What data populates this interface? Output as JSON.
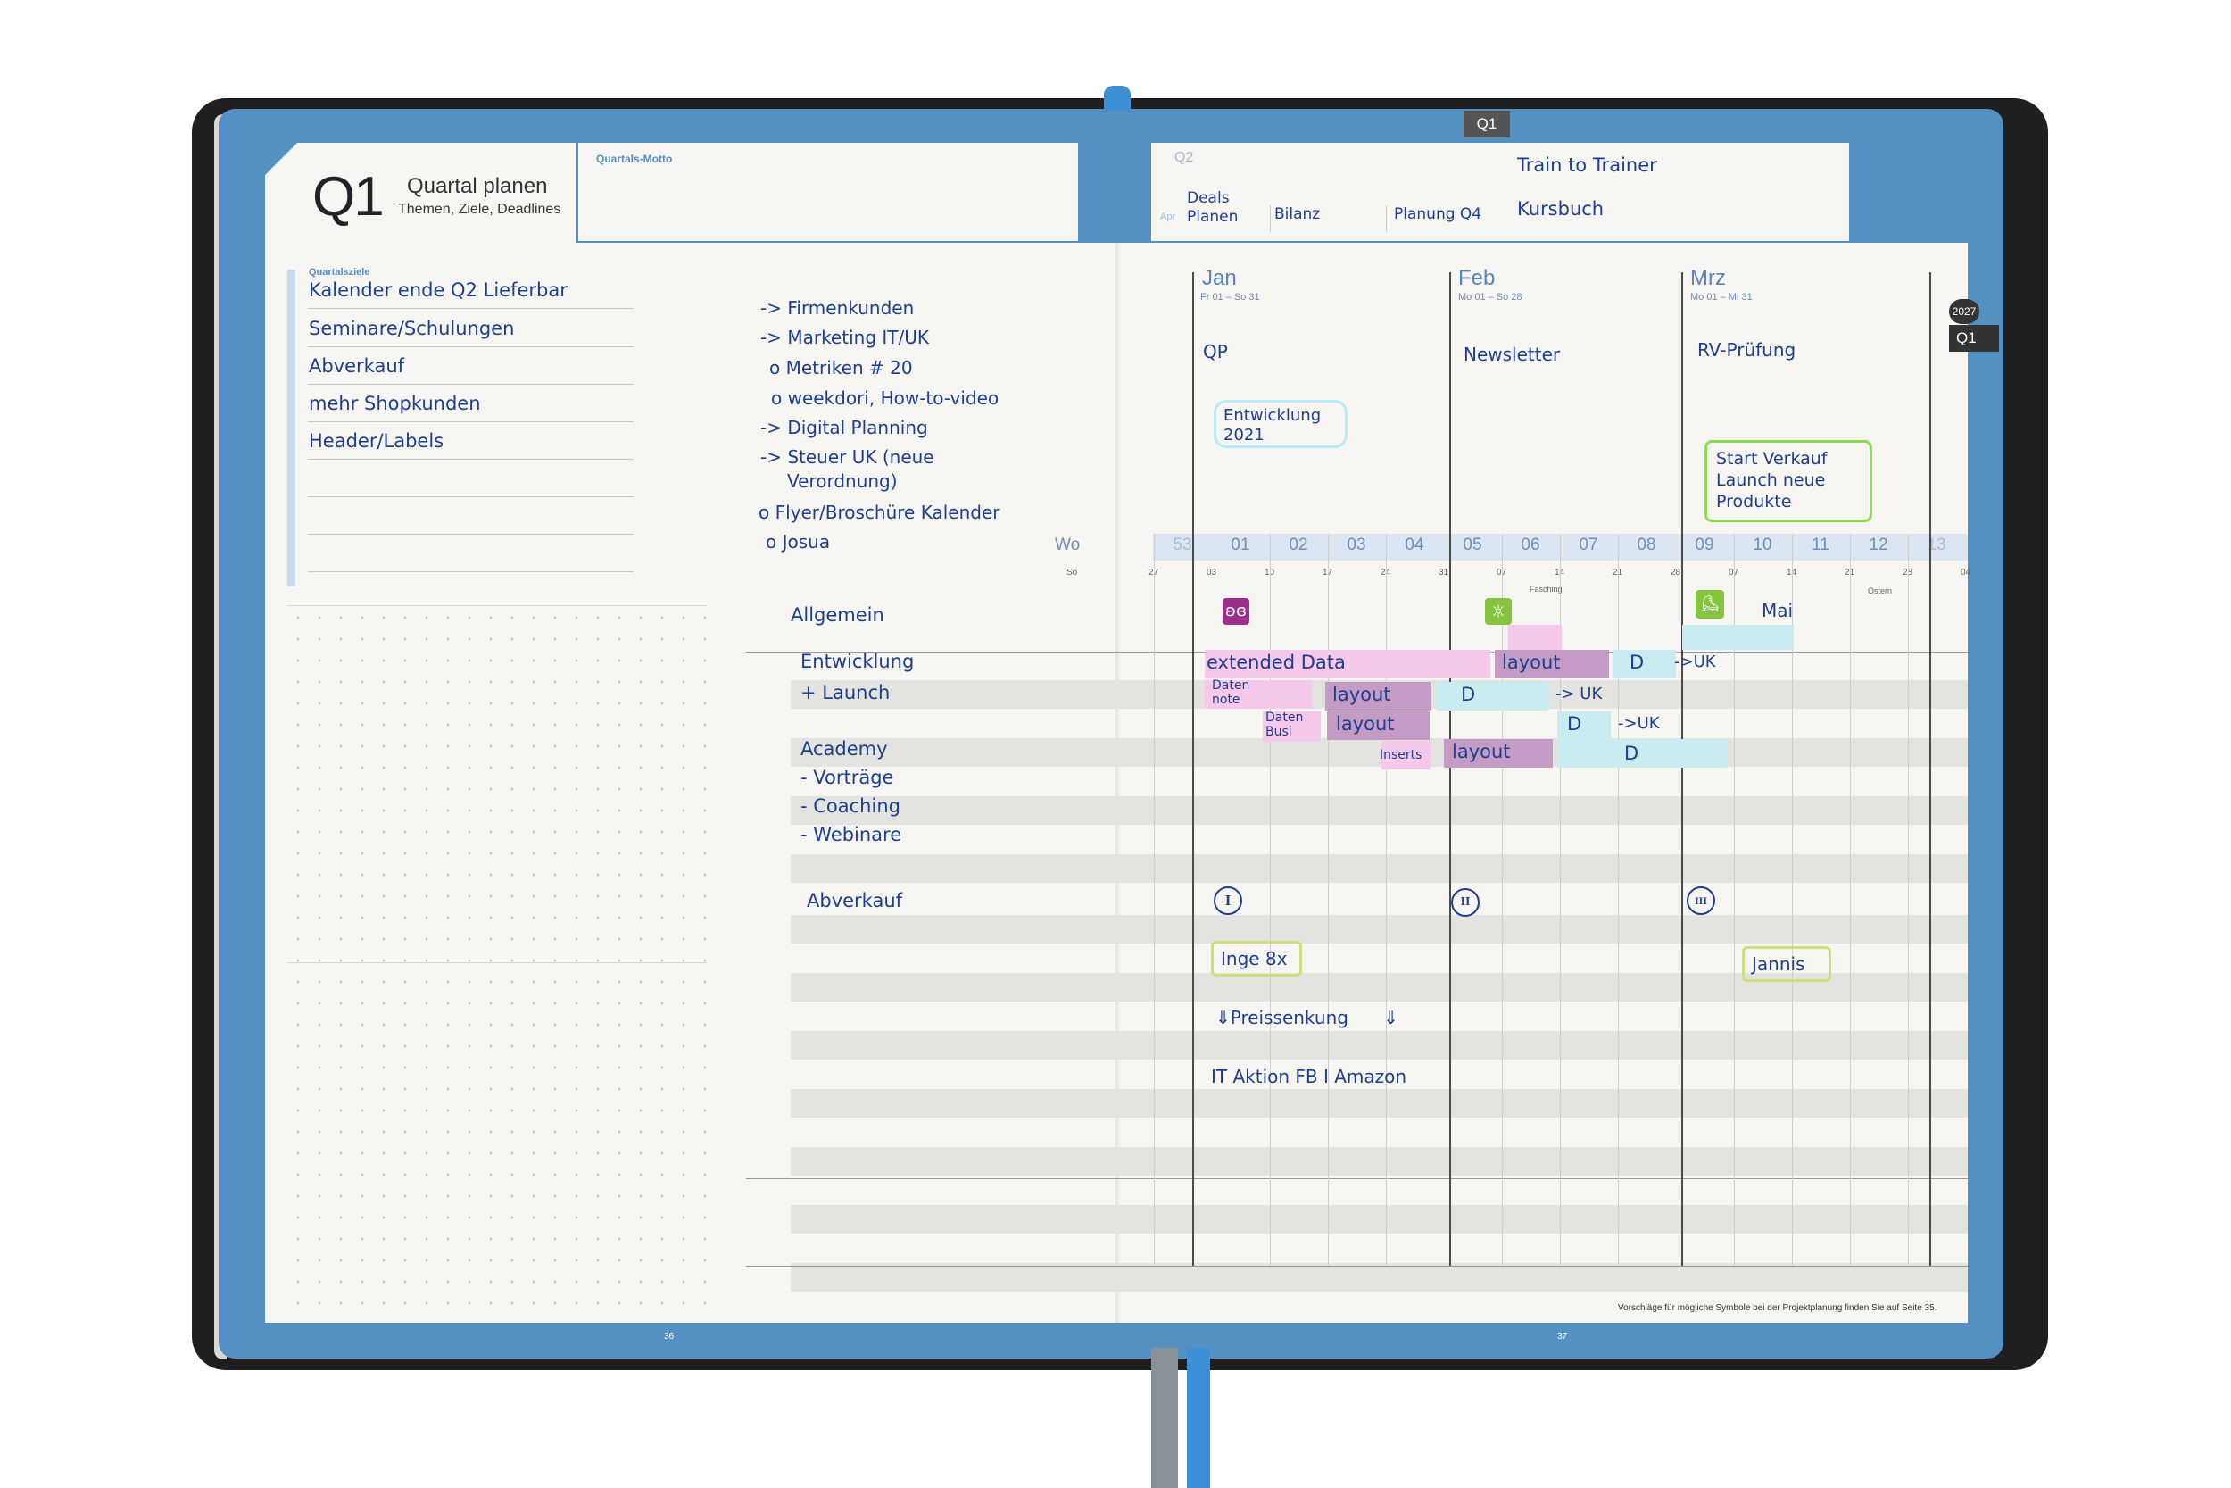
{
  "header": {
    "quarter": "Q1",
    "title": "Quartal planen",
    "subtitle": "Themen, Ziele, Deadlines",
    "motto_label": "Quartals-Motto",
    "q1_tab": "Q1",
    "q2_label": "Q2",
    "apr_label": "Apr",
    "deals_planen": "Deals Planen",
    "bilanz": "Bilanz",
    "planung_q4": "Planung Q4",
    "train": "Train to Trainer",
    "kursbuch": "Kursbuch",
    "side_year": "2027",
    "side_q": "Q1"
  },
  "goals": {
    "label": "Quartalsziele",
    "items": [
      "Kalender ende Q2 Lieferbar",
      "Seminare/Schulungen",
      "Abverkauf",
      "mehr Shopkunden",
      "Header/Labels"
    ]
  },
  "notes": [
    "-> Firmenkunden",
    "-> Marketing IT/UK",
    "o Metriken # 20",
    "o weekdori, How-to-video",
    "-> Digital Planning",
    "-> Steuer UK (neue",
    "Verordnung)",
    "o Flyer/Broschüre Kalender",
    "o Josua"
  ],
  "months": [
    {
      "name": "Jan",
      "range": "Fr 01 – So 31",
      "note": "QP"
    },
    {
      "name": "Feb",
      "range": "Mo 01 – So 28",
      "note": "Newsletter"
    },
    {
      "name": "Mrz",
      "range": "Mo 01 – Mi 31",
      "note": "RV-Prüfung"
    }
  ],
  "month_notes": {
    "entwicklung": "Entwicklung 2021",
    "start": "Start Verkauf Launch neue Produkte"
  },
  "week_header": {
    "label": "Wo",
    "sun_label": "So"
  },
  "weeks": [
    "53",
    "01",
    "02",
    "03",
    "04",
    "05",
    "06",
    "07",
    "08",
    "09",
    "10",
    "11",
    "12",
    "13"
  ],
  "sundays": [
    "27",
    "03",
    "10",
    "17",
    "24",
    "31",
    "07",
    "14",
    "21",
    "28",
    "07",
    "14",
    "21",
    "28",
    "04"
  ],
  "holidays": {
    "fasching": "Fasching",
    "ostern": "Ostern"
  },
  "rows": [
    "Allgemein",
    "Entwicklung",
    "+ Launch",
    "Academy",
    "- Vorträge",
    "- Coaching",
    "- Webinare",
    "Abverkauf"
  ],
  "bars": {
    "extended": "extended Data",
    "layout1": "layout",
    "d1": "D",
    "uk1": "->UK",
    "daten_note": "Daten note",
    "layout2": "layout",
    "d2": "D",
    "uk2": "-> UK",
    "daten_busi": "Daten Busi",
    "layout3": "layout",
    "d3": "D",
    "uk3": "->UK",
    "inserts": "Inserts",
    "layout4": "layout",
    "d4": "D",
    "mai": "Mai"
  },
  "abverkauf": {
    "r1": "I",
    "r2": "II",
    "r3": "III",
    "inge": "Inge 8x",
    "jannis": "Jannis",
    "preis": "⇓Preissenkung",
    "preis_arrow": "⇓",
    "it_aktion": "IT Aktion FB I Amazon"
  },
  "footer": {
    "page_left": "36",
    "page_right": "37",
    "footnote": "Vorschläge für mögliche Symbole bei der Projektplanung finden Sie auf Seite 35."
  },
  "colors": {
    "blue": "#5590c2",
    "pink": "#f6c8ea",
    "purple": "#c39bc4",
    "cyan": "#c9ecf1",
    "green_hl": "#8fdc54",
    "ink": "#1d3f8e"
  }
}
